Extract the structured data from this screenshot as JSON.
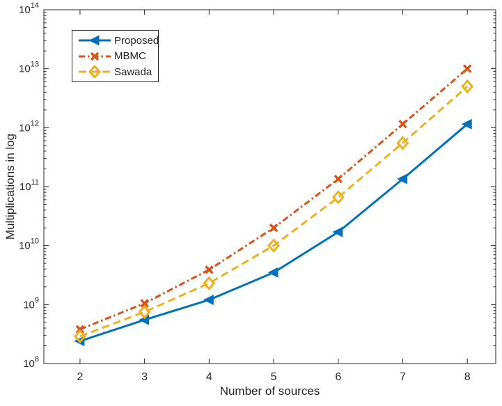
{
  "figure": {
    "background": "#ffffff",
    "axis_color": "#262626",
    "text_color": "#262626"
  },
  "chart_data": {
    "type": "line",
    "title": "",
    "xlabel": "Number of sources",
    "ylabel": "Multiplications in log",
    "y_scale": "log10",
    "grid": false,
    "legend_position": "top-left",
    "xlim": [
      1.44,
      8.44
    ],
    "ylim": [
      100000000.0,
      100000000000000.0
    ],
    "ylim_exp": [
      8,
      14
    ],
    "x_ticks": [
      2,
      3,
      4,
      5,
      6,
      7,
      8
    ],
    "y_tick_exponents": [
      8,
      9,
      10,
      11,
      12,
      13,
      14
    ],
    "y_tick_base": "10",
    "x": [
      2,
      3,
      4,
      5,
      6,
      7,
      8
    ],
    "series": [
      {
        "name": "Proposed",
        "color": "#0072BD",
        "line_style": "solid",
        "marker": "triangle-left",
        "values": [
          240000000.0,
          550000000.0,
          1200000000.0,
          3500000000.0,
          17000000000.0,
          135000000000.0,
          1150000000000.0
        ]
      },
      {
        "name": "MBMC",
        "color": "#D95319",
        "line_style": "dash-dot",
        "marker": "x",
        "values": [
          380000000.0,
          1050000000.0,
          3900000000.0,
          20000000000.0,
          135000000000.0,
          1150000000000.0,
          10000000000000.0
        ]
      },
      {
        "name": "Sawada",
        "color": "#EDB120",
        "line_style": "dashed",
        "marker": "diamond",
        "values": [
          290000000.0,
          750000000.0,
          2300000000.0,
          10000000000.0,
          66000000000.0,
          550000000000.0,
          5000000000000.0
        ]
      }
    ]
  }
}
